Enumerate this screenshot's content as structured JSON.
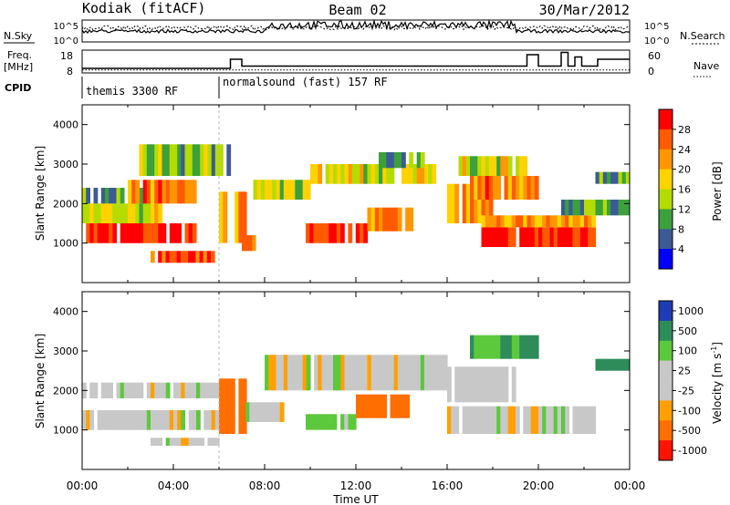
{
  "header": {
    "station": "Kodiak (fitACF)",
    "beam": "Beam 02",
    "date": "30/Mar/2012"
  },
  "top_panels": {
    "nsky_label": "N.Sky",
    "nsky_ticks": [
      "10^5",
      "10^0"
    ],
    "nsearch_label": "N.Search",
    "nsearch_ticks": [
      "10^5",
      "10^0"
    ],
    "freq_label_1": "Freq.",
    "freq_label_2": "[MHz]",
    "freq_ticks": [
      "18",
      "8"
    ],
    "nave_label": "Nave",
    "nave_ticks": [
      "60",
      "0"
    ],
    "cpid_label": "CPID",
    "cpid_segments": [
      {
        "label": "themis 3300 RF",
        "start_hour": 0
      },
      {
        "label": "normalsound (fast) 157 RF",
        "start_hour": 6
      }
    ]
  },
  "axes": {
    "xlabel": "Time UT",
    "ylabel": "Slant Range [km]",
    "x_tick_labels": [
      "00:00",
      "04:00",
      "08:00",
      "12:00",
      "16:00",
      "20:00",
      "00:00"
    ],
    "y_tick_labels": [
      "1000",
      "2000",
      "3000",
      "4000"
    ]
  },
  "colorbars": {
    "power": {
      "label": "Power [dB]",
      "ticks": [
        "28",
        "24",
        "20",
        "16",
        "12",
        "8",
        "4"
      ],
      "colors": [
        "#ff0000",
        "#ff5a00",
        "#ff9600",
        "#ffd200",
        "#b4dc00",
        "#3ca03c",
        "#3c5a96",
        "#0000ff"
      ]
    },
    "velocity": {
      "label": "Velocity [m s",
      "label_sup": "-1",
      "label_close": "]",
      "ticks": [
        "1000",
        "500",
        "100",
        "25",
        "-25",
        "-100",
        "-500",
        "-1000"
      ],
      "colors": [
        "#1e3cb4",
        "#2e8c5a",
        "#5cc83c",
        "#c8c8c8",
        "#c8c8c8",
        "#ffa000",
        "#ff6e00",
        "#ff1400"
      ]
    }
  },
  "chart_data": [
    {
      "type": "heatmap",
      "name": "power",
      "x_unit": "hours UT",
      "y_unit": "km",
      "xlim": [
        0,
        24
      ],
      "ylim": [
        0,
        4500
      ],
      "value_unit": "dB",
      "regions": [
        {
          "t0": 0.0,
          "t1": 5.0,
          "r0": 1000,
          "r1": 1500,
          "value": 27
        },
        {
          "t0": 0.0,
          "t1": 3.5,
          "r0": 1500,
          "r1": 2000,
          "value": 14
        },
        {
          "t0": 0.0,
          "t1": 3.0,
          "r0": 2000,
          "r1": 2400,
          "value": 8
        },
        {
          "t0": 2.0,
          "t1": 5.0,
          "r0": 2000,
          "r1": 2600,
          "value": 22
        },
        {
          "t0": 2.5,
          "t1": 6.5,
          "r0": 2700,
          "r1": 3500,
          "value": 10
        },
        {
          "t0": 3.0,
          "t1": 5.8,
          "r0": 500,
          "r1": 800,
          "value": 25
        },
        {
          "t0": 6.0,
          "t1": 7.2,
          "r0": 1000,
          "r1": 2300,
          "value": 20
        },
        {
          "t0": 7.0,
          "t1": 7.6,
          "r0": 800,
          "r1": 1200,
          "value": 22
        },
        {
          "t0": 7.5,
          "t1": 10.0,
          "r0": 2100,
          "r1": 2600,
          "value": 12
        },
        {
          "t0": 9.8,
          "t1": 12.5,
          "r0": 1000,
          "r1": 1500,
          "value": 26
        },
        {
          "t0": 12.5,
          "t1": 14.5,
          "r0": 1300,
          "r1": 1900,
          "value": 22
        },
        {
          "t0": 10.0,
          "t1": 15.5,
          "r0": 2500,
          "r1": 3000,
          "value": 14
        },
        {
          "t0": 13.0,
          "t1": 15.0,
          "r0": 2900,
          "r1": 3300,
          "value": 8
        },
        {
          "t0": 16.0,
          "t1": 18.0,
          "r0": 1500,
          "r1": 2500,
          "value": 20
        },
        {
          "t0": 17.5,
          "t1": 22.5,
          "r0": 900,
          "r1": 1400,
          "value": 27
        },
        {
          "t0": 17.5,
          "t1": 22.5,
          "r0": 1400,
          "r1": 1700,
          "value": 20
        },
        {
          "t0": 17.0,
          "t1": 20.0,
          "r0": 2100,
          "r1": 2700,
          "value": 22
        },
        {
          "t0": 16.5,
          "t1": 19.5,
          "r0": 2700,
          "r1": 3200,
          "value": 14
        },
        {
          "t0": 21.0,
          "t1": 24.0,
          "r0": 1700,
          "r1": 2100,
          "value": 8
        },
        {
          "t0": 22.5,
          "t1": 24.0,
          "r0": 2500,
          "r1": 2800,
          "value": 8
        }
      ]
    },
    {
      "type": "heatmap",
      "name": "velocity",
      "x_unit": "hours UT",
      "y_unit": "km",
      "xlim": [
        0,
        24
      ],
      "ylim": [
        0,
        4500
      ],
      "value_unit": "m/s",
      "regions": [
        {
          "t0": 0.0,
          "t1": 6.0,
          "r0": 1000,
          "r1": 1500,
          "value": 0
        },
        {
          "t0": 0.0,
          "t1": 6.0,
          "r0": 1800,
          "r1": 2200,
          "value": 0
        },
        {
          "t0": 3.0,
          "t1": 6.0,
          "r0": 600,
          "r1": 800,
          "value": 0
        },
        {
          "t0": 6.0,
          "t1": 7.2,
          "r0": 900,
          "r1": 2300,
          "value": -150
        },
        {
          "t0": 7.0,
          "t1": 9.0,
          "r0": 1200,
          "r1": 1700,
          "value": 0
        },
        {
          "t0": 8.0,
          "t1": 16.0,
          "r0": 2000,
          "r1": 2900,
          "value": 0
        },
        {
          "t0": 9.8,
          "t1": 12.0,
          "r0": 1000,
          "r1": 1400,
          "value": 50
        },
        {
          "t0": 12.0,
          "t1": 14.5,
          "r0": 1300,
          "r1": 1900,
          "value": -150
        },
        {
          "t0": 16.0,
          "t1": 22.5,
          "r0": 900,
          "r1": 1600,
          "value": 0
        },
        {
          "t0": 16.0,
          "t1": 19.0,
          "r0": 1700,
          "r1": 2600,
          "value": 0
        },
        {
          "t0": 17.0,
          "t1": 20.0,
          "r0": 2800,
          "r1": 3400,
          "value": 100
        },
        {
          "t0": 22.5,
          "t1": 24.0,
          "r0": 2500,
          "r1": 2800,
          "value": 200
        }
      ]
    },
    {
      "type": "line",
      "name": "transmit frequency",
      "x_unit": "hours UT",
      "y_unit": "MHz",
      "x": [
        0,
        6.5,
        6.5,
        7.0,
        7.0,
        19.5,
        19.5,
        20.0,
        20.0,
        21.0,
        21.0,
        21.3,
        21.3,
        21.6,
        21.6,
        21.9,
        21.9,
        22.6,
        22.6,
        24.0
      ],
      "y": [
        10,
        10,
        14,
        14,
        11,
        11,
        16,
        16,
        11,
        11,
        17,
        17,
        11,
        11,
        15,
        15,
        11,
        11,
        14,
        14
      ]
    }
  ]
}
